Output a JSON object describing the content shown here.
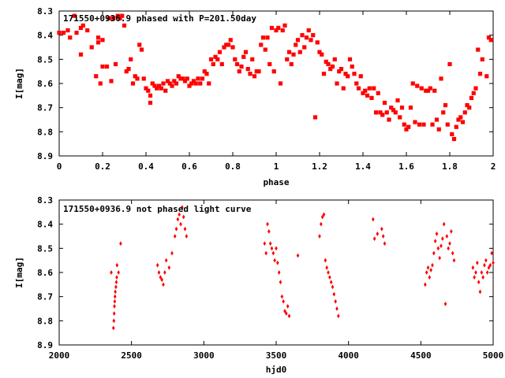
{
  "chart_data": [
    {
      "type": "scatter",
      "title": "171550+0936.9 phased with P=201.50day",
      "xlabel": "phase",
      "ylabel": "I[mag]",
      "xlim": [
        0,
        2
      ],
      "ylim": [
        8.9,
        8.3
      ],
      "y_inverted": true,
      "xticks": [
        "0",
        "0.2",
        "0.4",
        "0.6",
        "0.8",
        "1",
        "1.2",
        "1.4",
        "1.6",
        "1.8",
        "2"
      ],
      "xtick_values": [
        0,
        0.2,
        0.4,
        0.6,
        0.8,
        1,
        1.2,
        1.4,
        1.6,
        1.8,
        2
      ],
      "yticks": [
        "8.3",
        "8.4",
        "8.5",
        "8.6",
        "8.7",
        "8.8",
        "8.9"
      ],
      "ytick_values": [
        8.3,
        8.4,
        8.5,
        8.6,
        8.7,
        8.8,
        8.9
      ],
      "marker_color": "#ff0000",
      "points": [
        [
          0.0,
          8.39
        ],
        [
          0.02,
          8.39
        ],
        [
          0.04,
          8.38
        ],
        [
          0.05,
          8.41
        ],
        [
          0.07,
          8.32
        ],
        [
          0.08,
          8.39
        ],
        [
          0.1,
          8.37
        ],
        [
          0.11,
          8.36
        ],
        [
          0.1,
          8.48
        ],
        [
          0.13,
          8.38
        ],
        [
          0.15,
          8.45
        ],
        [
          0.17,
          8.57
        ],
        [
          0.18,
          8.41
        ],
        [
          0.18,
          8.43
        ],
        [
          0.19,
          8.6
        ],
        [
          0.2,
          8.42
        ],
        [
          0.2,
          8.53
        ],
        [
          0.22,
          8.53
        ],
        [
          0.23,
          8.33
        ],
        [
          0.24,
          8.59
        ],
        [
          0.25,
          8.33
        ],
        [
          0.26,
          8.52
        ],
        [
          0.27,
          8.32
        ],
        [
          0.28,
          8.33
        ],
        [
          0.29,
          8.32
        ],
        [
          0.3,
          8.36
        ],
        [
          0.31,
          8.55
        ],
        [
          0.32,
          8.54
        ],
        [
          0.33,
          8.5
        ],
        [
          0.34,
          8.6
        ],
        [
          0.35,
          8.57
        ],
        [
          0.36,
          8.58
        ],
        [
          0.37,
          8.44
        ],
        [
          0.38,
          8.46
        ],
        [
          0.39,
          8.58
        ],
        [
          0.4,
          8.62
        ],
        [
          0.41,
          8.63
        ],
        [
          0.42,
          8.65
        ],
        [
          0.42,
          8.68
        ],
        [
          0.43,
          8.6
        ],
        [
          0.44,
          8.61
        ],
        [
          0.45,
          8.62
        ],
        [
          0.46,
          8.61
        ],
        [
          0.47,
          8.62
        ],
        [
          0.48,
          8.6
        ],
        [
          0.49,
          8.63
        ],
        [
          0.5,
          8.59
        ],
        [
          0.51,
          8.6
        ],
        [
          0.52,
          8.61
        ],
        [
          0.53,
          8.59
        ],
        [
          0.54,
          8.6
        ],
        [
          0.55,
          8.57
        ],
        [
          0.56,
          8.58
        ],
        [
          0.57,
          8.58
        ],
        [
          0.58,
          8.59
        ],
        [
          0.59,
          8.58
        ],
        [
          0.6,
          8.61
        ],
        [
          0.61,
          8.6
        ],
        [
          0.62,
          8.59
        ],
        [
          0.63,
          8.6
        ],
        [
          0.64,
          8.58
        ],
        [
          0.65,
          8.6
        ],
        [
          0.66,
          8.58
        ],
        [
          0.67,
          8.55
        ],
        [
          0.68,
          8.56
        ],
        [
          0.69,
          8.6
        ],
        [
          0.7,
          8.5
        ],
        [
          0.71,
          8.52
        ],
        [
          0.72,
          8.49
        ],
        [
          0.73,
          8.5
        ],
        [
          0.74,
          8.47
        ],
        [
          0.75,
          8.52
        ],
        [
          0.76,
          8.45
        ],
        [
          0.77,
          8.44
        ],
        [
          0.78,
          8.44
        ],
        [
          0.79,
          8.42
        ],
        [
          0.8,
          8.45
        ],
        [
          0.81,
          8.5
        ],
        [
          0.82,
          8.52
        ],
        [
          0.83,
          8.55
        ],
        [
          0.84,
          8.53
        ],
        [
          0.85,
          8.49
        ],
        [
          0.86,
          8.47
        ],
        [
          0.87,
          8.54
        ],
        [
          0.88,
          8.56
        ],
        [
          0.89,
          8.5
        ],
        [
          0.9,
          8.57
        ],
        [
          0.91,
          8.55
        ],
        [
          0.92,
          8.55
        ],
        [
          0.93,
          8.44
        ],
        [
          0.94,
          8.41
        ],
        [
          0.95,
          8.46
        ],
        [
          0.96,
          8.41
        ],
        [
          0.97,
          8.52
        ],
        [
          0.98,
          8.37
        ],
        [
          0.99,
          8.55
        ],
        [
          1.0,
          8.38
        ],
        [
          1.01,
          8.37
        ],
        [
          1.02,
          8.6
        ],
        [
          1.03,
          8.38
        ],
        [
          1.04,
          8.36
        ],
        [
          1.05,
          8.5
        ],
        [
          1.06,
          8.47
        ],
        [
          1.07,
          8.52
        ],
        [
          1.08,
          8.48
        ],
        [
          1.09,
          8.44
        ],
        [
          1.1,
          8.42
        ],
        [
          1.11,
          8.47
        ],
        [
          1.12,
          8.4
        ],
        [
          1.13,
          8.45
        ],
        [
          1.14,
          8.41
        ],
        [
          1.15,
          8.38
        ],
        [
          1.16,
          8.42
        ],
        [
          1.17,
          8.4
        ],
        [
          1.18,
          8.74
        ],
        [
          1.19,
          8.43
        ],
        [
          1.2,
          8.47
        ],
        [
          1.21,
          8.48
        ],
        [
          1.22,
          8.56
        ],
        [
          1.23,
          8.51
        ],
        [
          1.24,
          8.52
        ],
        [
          1.25,
          8.54
        ],
        [
          1.26,
          8.53
        ],
        [
          1.27,
          8.5
        ],
        [
          1.28,
          8.6
        ],
        [
          1.29,
          8.55
        ],
        [
          1.3,
          8.54
        ],
        [
          1.31,
          8.62
        ],
        [
          1.32,
          8.56
        ],
        [
          1.33,
          8.57
        ],
        [
          1.34,
          8.5
        ],
        [
          1.35,
          8.53
        ],
        [
          1.36,
          8.56
        ],
        [
          1.37,
          8.6
        ],
        [
          1.38,
          8.62
        ],
        [
          1.39,
          8.57
        ],
        [
          1.4,
          8.64
        ],
        [
          1.41,
          8.63
        ],
        [
          1.42,
          8.65
        ],
        [
          1.43,
          8.62
        ],
        [
          1.44,
          8.66
        ],
        [
          1.45,
          8.62
        ],
        [
          1.46,
          8.72
        ],
        [
          1.47,
          8.64
        ],
        [
          1.48,
          8.72
        ],
        [
          1.49,
          8.73
        ],
        [
          1.5,
          8.68
        ],
        [
          1.51,
          8.72
        ],
        [
          1.52,
          8.75
        ],
        [
          1.53,
          8.7
        ],
        [
          1.54,
          8.71
        ],
        [
          1.55,
          8.72
        ],
        [
          1.56,
          8.67
        ],
        [
          1.57,
          8.74
        ],
        [
          1.58,
          8.7
        ],
        [
          1.59,
          8.77
        ],
        [
          1.6,
          8.79
        ],
        [
          1.61,
          8.78
        ],
        [
          1.62,
          8.7
        ],
        [
          1.63,
          8.6
        ],
        [
          1.64,
          8.76
        ],
        [
          1.65,
          8.61
        ],
        [
          1.66,
          8.77
        ],
        [
          1.67,
          8.62
        ],
        [
          1.68,
          8.77
        ],
        [
          1.69,
          8.63
        ],
        [
          1.7,
          8.63
        ],
        [
          1.71,
          8.62
        ],
        [
          1.72,
          8.77
        ],
        [
          1.73,
          8.63
        ],
        [
          1.74,
          8.75
        ],
        [
          1.75,
          8.79
        ],
        [
          1.76,
          8.58
        ],
        [
          1.77,
          8.72
        ],
        [
          1.78,
          8.69
        ],
        [
          1.79,
          8.77
        ],
        [
          1.8,
          8.52
        ],
        [
          1.81,
          8.81
        ],
        [
          1.82,
          8.83
        ],
        [
          1.83,
          8.78
        ],
        [
          1.84,
          8.75
        ],
        [
          1.85,
          8.74
        ],
        [
          1.86,
          8.76
        ],
        [
          1.87,
          8.72
        ],
        [
          1.88,
          8.69
        ],
        [
          1.89,
          8.7
        ],
        [
          1.9,
          8.66
        ],
        [
          1.91,
          8.64
        ],
        [
          1.92,
          8.62
        ],
        [
          1.93,
          8.46
        ],
        [
          1.94,
          8.56
        ],
        [
          1.95,
          8.5
        ],
        [
          1.97,
          8.57
        ],
        [
          1.98,
          8.41
        ],
        [
          1.99,
          8.42
        ]
      ]
    },
    {
      "type": "scatter",
      "title": "171550+0936.9 not phased light curve",
      "xlabel": "hjd0",
      "ylabel": "I[mag]",
      "xlim": [
        2000,
        5000
      ],
      "ylim": [
        8.9,
        8.3
      ],
      "y_inverted": true,
      "xticks": [
        "2000",
        "2500",
        "3000",
        "3500",
        "4000",
        "4500",
        "5000"
      ],
      "xtick_values": [
        2000,
        2500,
        3000,
        3500,
        4000,
        4500,
        5000
      ],
      "yticks": [
        "8.3",
        "8.4",
        "8.5",
        "8.6",
        "8.7",
        "8.8",
        "8.9"
      ],
      "ytick_values": [
        8.3,
        8.4,
        8.5,
        8.6,
        8.7,
        8.8,
        8.9
      ],
      "marker_color": "#ff0000",
      "points": [
        [
          2360,
          8.6
        ],
        [
          2375,
          8.83
        ],
        [
          2378,
          8.8
        ],
        [
          2380,
          8.77
        ],
        [
          2382,
          8.74
        ],
        [
          2384,
          8.72
        ],
        [
          2386,
          8.7
        ],
        [
          2388,
          8.68
        ],
        [
          2392,
          8.66
        ],
        [
          2395,
          8.64
        ],
        [
          2398,
          8.62
        ],
        [
          2400,
          8.57
        ],
        [
          2410,
          8.6
        ],
        [
          2425,
          8.48
        ],
        [
          2680,
          8.57
        ],
        [
          2690,
          8.6
        ],
        [
          2700,
          8.62
        ],
        [
          2710,
          8.63
        ],
        [
          2720,
          8.65
        ],
        [
          2730,
          8.6
        ],
        [
          2740,
          8.55
        ],
        [
          2760,
          8.58
        ],
        [
          2780,
          8.52
        ],
        [
          2800,
          8.45
        ],
        [
          2810,
          8.42
        ],
        [
          2820,
          8.38
        ],
        [
          2830,
          8.36
        ],
        [
          2840,
          8.4
        ],
        [
          2850,
          8.33
        ],
        [
          2860,
          8.37
        ],
        [
          2870,
          8.42
        ],
        [
          2880,
          8.45
        ],
        [
          3420,
          8.48
        ],
        [
          3430,
          8.52
        ],
        [
          3440,
          8.4
        ],
        [
          3450,
          8.43
        ],
        [
          3460,
          8.48
        ],
        [
          3470,
          8.5
        ],
        [
          3480,
          8.52
        ],
        [
          3490,
          8.55
        ],
        [
          3500,
          8.5
        ],
        [
          3510,
          8.56
        ],
        [
          3520,
          8.6
        ],
        [
          3530,
          8.64
        ],
        [
          3540,
          8.7
        ],
        [
          3550,
          8.72
        ],
        [
          3560,
          8.76
        ],
        [
          3570,
          8.77
        ],
        [
          3580,
          8.74
        ],
        [
          3590,
          8.78
        ],
        [
          3650,
          8.53
        ],
        [
          3800,
          8.45
        ],
        [
          3810,
          8.4
        ],
        [
          3820,
          8.37
        ],
        [
          3830,
          8.36
        ],
        [
          3840,
          8.55
        ],
        [
          3850,
          8.58
        ],
        [
          3860,
          8.6
        ],
        [
          3870,
          8.62
        ],
        [
          3880,
          8.64
        ],
        [
          3890,
          8.66
        ],
        [
          3900,
          8.69
        ],
        [
          3910,
          8.72
        ],
        [
          3920,
          8.75
        ],
        [
          3930,
          8.78
        ],
        [
          4170,
          8.38
        ],
        [
          4180,
          8.46
        ],
        [
          4200,
          8.44
        ],
        [
          4230,
          8.42
        ],
        [
          4240,
          8.45
        ],
        [
          4250,
          8.48
        ],
        [
          4530,
          8.65
        ],
        [
          4540,
          8.6
        ],
        [
          4550,
          8.58
        ],
        [
          4560,
          8.62
        ],
        [
          4570,
          8.59
        ],
        [
          4580,
          8.57
        ],
        [
          4590,
          8.52
        ],
        [
          4600,
          8.47
        ],
        [
          4610,
          8.44
        ],
        [
          4620,
          8.5
        ],
        [
          4630,
          8.54
        ],
        [
          4640,
          8.49
        ],
        [
          4650,
          8.46
        ],
        [
          4660,
          8.4
        ],
        [
          4670,
          8.73
        ],
        [
          4680,
          8.45
        ],
        [
          4690,
          8.5
        ],
        [
          4700,
          8.48
        ],
        [
          4710,
          8.43
        ],
        [
          4720,
          8.52
        ],
        [
          4730,
          8.55
        ],
        [
          4860,
          8.58
        ],
        [
          4870,
          8.62
        ],
        [
          4880,
          8.6
        ],
        [
          4890,
          8.56
        ],
        [
          4900,
          8.64
        ],
        [
          4910,
          8.68
        ],
        [
          4920,
          8.6
        ],
        [
          4930,
          8.62
        ],
        [
          4940,
          8.57
        ],
        [
          4950,
          8.55
        ],
        [
          4960,
          8.6
        ],
        [
          4970,
          8.58
        ],
        [
          4980,
          8.57
        ],
        [
          4990,
          8.52
        ],
        [
          5000,
          8.56
        ]
      ]
    }
  ]
}
